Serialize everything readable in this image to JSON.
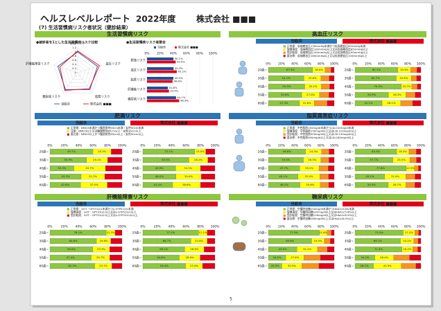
{
  "header": {
    "title": "ヘルスレベルレポート",
    "year": "2022年度",
    "company": "株式会社 ■■■",
    "subtitle": "(7) 生活習慣病リスク者状況（健診結果）"
  },
  "page_number": "5",
  "axis": {
    "xlim": [
      0,
      100
    ],
    "xticks": [
      {
        "value": 0,
        "label": "0%"
      },
      {
        "value": 20,
        "label": "20%"
      },
      {
        "value": 40,
        "label": "40%"
      },
      {
        "value": 60,
        "label": "60%"
      },
      {
        "value": 80,
        "label": "80%"
      },
      {
        "value": 100,
        "label": "100%"
      }
    ]
  },
  "age_groups": [
    "20歳~",
    "30歳~",
    "40歳~",
    "50歳~",
    "60歳~"
  ],
  "groups": [
    {
      "name": "当組合",
      "color": "#2e75b6"
    },
    {
      "name": "株式会社 ■■■",
      "color": "#e2001a"
    }
  ],
  "overview": {
    "title": "生活習慣病リスク",
    "radar": {
      "type": "radar",
      "title": "●被診者を1とした生活習慣病リスク比較",
      "axes": [
        "肥満リスク",
        "血圧リスク",
        "脂質リスク",
        "糖尿病リスク",
        "肝機能障害リスク"
      ],
      "rlim": [
        0,
        1.2
      ],
      "rticks": [
        0,
        0.2,
        0.4,
        0.6,
        0.8,
        1,
        1.2
      ],
      "series": [
        {
          "name": "当組合",
          "color": "#1f4e9c",
          "values": [
            1,
            1,
            1,
            1,
            1
          ]
        },
        {
          "name": "株式会社 ■■■",
          "color": "#e2001a",
          "values": [
            1.05,
            1.1,
            0.95,
            1.05,
            0.9
          ]
        }
      ]
    },
    "bars": {
      "type": "bar",
      "title": "●生活習慣病リスク者割合",
      "categories": [
        "肥満リスク",
        "血圧リスク",
        "脂質リスク",
        "肝機能リスク",
        "糖尿病リスク"
      ],
      "series": [
        {
          "name": "当組合",
          "color": "#1f4e9c",
          "values": [
            40.1,
            40.3,
            40.0,
            31.6,
            44.1
          ],
          "value_labels": [
            "40.1%",
            "40.3%",
            "40.0%",
            "31.6%",
            "44.1%"
          ]
        },
        {
          "name": "株式会社 ■■■",
          "color": "#e2001a",
          "values": [
            43.5,
            45.2,
            38.8,
            33.4,
            48.9
          ],
          "value_labels": [
            "43.5%",
            "45.2%",
            "38.8%",
            "33.4%",
            "48.9%"
          ]
        }
      ]
    }
  },
  "risks": [
    {
      "title": "高血圧リスク",
      "legend": [
        {
          "name": "正常値：収縮期血圧130mmHg未満かつ拡張期血圧85mmHg未満",
          "color": "#8dc63f"
        },
        {
          "name": "保健指導：収縮期血圧130mmHg以上又は拡張期血圧85mmHg以上",
          "color": "#ffff00"
        },
        {
          "name": "受診勧奨：収縮期血圧140mmHg以上又は拡張期血圧90mmHg以上",
          "color": "#f7941d"
        },
        {
          "name": "要治療：収縮期血圧160mmHg以上又は拡張期血圧100mmHg以上",
          "color": "#e2001a"
        }
      ],
      "charts": [
        {
          "series": [
            {
              "values": [
                67.3,
                54.1,
                55.3,
                50.8,
                47.3
              ],
              "value_labels": [
                "67.3%",
                "54.1%",
                "55.3%",
                "50.8%",
                "47.3%"
              ]
            },
            {
              "values": [
                18.9,
                25.8,
                25.2,
                27.0,
                22.6
              ],
              "value_labels": [
                "18.9%",
                "25.8%",
                "25.2%",
                "27.0%",
                "22.6%"
              ]
            },
            {
              "values": [
                8.8,
                12.4,
                12.6,
                14.2,
                19.4
              ]
            },
            {
              "values": [
                5.0,
                7.7,
                6.9,
                8.0,
                10.7
              ]
            }
          ]
        },
        {
          "series": [
            {
              "values": [
                65.1,
                62.7,
                70.3,
                50.9,
                41.1
              ],
              "value_labels": [
                "65.1%",
                "62.7%",
                "70.3%",
                "50.9%",
                "41.1%"
              ]
            },
            {
              "values": [
                19.3,
                22.8,
                15.7,
                26.3,
                28.1
              ],
              "value_labels": [
                "19.3%",
                "22.8%",
                "15.7%",
                "26.3%",
                "28.1%"
              ]
            },
            {
              "values": [
                9.6,
                8.1,
                8.5,
                14.0,
                18.2
              ]
            },
            {
              "values": [
                6.0,
                6.4,
                5.5,
                8.8,
                12.6
              ]
            }
          ]
        }
      ]
    },
    {
      "title": "肥満リスク",
      "legend": [
        {
          "name": "正常値：BMI25未満かつ腹囲男性85cm未満・女性90cm未満",
          "color": "#8dc63f"
        },
        {
          "name": "注意：BMI25以上又は腹囲男性85cm以上・女性90cm以上",
          "color": "#ffff00"
        },
        {
          "name": "要注意：BMI25以上かつ腹囲男性85cm以上・女性90cm以上",
          "color": "#e2001a"
        }
      ],
      "charts": [
        {
          "series": [
            {
              "values": [
                59.7,
                50.9,
                33.3,
                43.3,
                42.6
              ],
              "value_labels": [
                "59.7%",
                "50.9%",
                "33.3%",
                "43.3%",
                "42.6%"
              ]
            },
            {
              "values": [
                25.3,
                29.1,
                43.7,
                32.7,
                37.0
              ],
              "value_labels": [
                "25.3%",
                "29.1%",
                "43.7%",
                "32.7%",
                "37.0%"
              ]
            },
            {
              "values": [
                15.0,
                20.0,
                23.0,
                24.0,
                20.4
              ]
            }
          ]
        },
        {
          "series": [
            {
              "values": [
                72.1,
                63.9,
                45.6,
                46.0,
                41.4
              ],
              "value_labels": [
                "72.1%",
                "63.9%",
                "45.6%",
                "46.0%",
                "41.4%"
              ]
            },
            {
              "values": [
                15.0,
                26.2,
                34.3,
                35.0,
                38.6
              ],
              "value_labels": [
                "15.0%",
                "26.2%",
                "34.3%",
                "35.0%",
                "38.6%"
              ]
            },
            {
              "values": [
                12.9,
                9.9,
                20.1,
                19.0,
                20.0
              ]
            }
          ]
        }
      ]
    },
    {
      "title": "脂質異常症リスク",
      "legend": [
        {
          "name": "正常値：中性脂肪150mg/dl未満かつLDL120mg/dl未満",
          "color": "#8dc63f"
        },
        {
          "name": "保健指導：中性脂肪150mg/dl以上又はLDL120mg/dl以上",
          "color": "#ffff00"
        },
        {
          "name": "受診勧奨：中性脂肪300mg/dl以上又はLDL140mg/dl以上",
          "color": "#f7941d"
        },
        {
          "name": "要治療：中性脂肪500mg/dl以上又はLDL180mg/dl以上",
          "color": "#e2001a"
        }
      ],
      "charts": [
        {
          "series": [
            {
              "values": [
                56.6,
                53.4,
                47.7,
                45.1,
                48.2
              ],
              "value_labels": [
                "56.6%",
                "53.4%",
                "47.7%",
                "45.1%",
                "48.2%"
              ]
            },
            {
              "values": [
                24.3,
                26.5,
                29.2,
                32.9,
                30.6
              ],
              "value_labels": [
                "24.3%",
                "26.5%",
                "29.2%",
                "32.9%",
                "30.6%"
              ]
            },
            {
              "values": [
                11.2,
                12.1,
                14.0,
                13.3,
                12.8
              ]
            },
            {
              "values": [
                7.9,
                8.0,
                9.1,
                8.7,
                8.4
              ]
            }
          ]
        },
        {
          "series": [
            {
              "values": [
                63.3,
                57.7,
                77.8,
                45.1,
                50.5
              ],
              "value_labels": [
                "63.3%",
                "57.7%",
                "77.8%",
                "45.1%",
                "50.5%"
              ]
            },
            {
              "values": [
                18.4,
                25.5,
                12.5,
                31.9,
                26.7
              ],
              "value_labels": [
                "18.4%",
                "25.5%",
                "12.5%",
                "31.9%",
                "26.7%"
              ]
            },
            {
              "values": [
                11.3,
                10.0,
                5.9,
                14.1,
                13.6
              ]
            },
            {
              "values": [
                7.0,
                6.8,
                3.8,
                8.9,
                9.2
              ]
            }
          ]
        }
      ]
    },
    {
      "title": "肝機能障害リスク",
      "legend": [
        {
          "name": "正常値：GOT・GPT31U/L未満かつγ-GTP51U/L未満",
          "color": "#8dc63f"
        },
        {
          "name": "保健指導：GOT・GPT31U/L以上又はγ-GTP51U/L以上",
          "color": "#ffff00"
        },
        {
          "name": "受診勧奨：GOT・GPT51U/L以上又はγ-GTP101U/L以上",
          "color": "#e2001a"
        }
      ],
      "charts": [
        {
          "series": [
            {
              "values": [
                78.1,
                64.6,
                59.5,
                57.4,
                62.3
              ],
              "value_labels": [
                "78.1%",
                "64.6%",
                "59.5%",
                "57.4%",
                "62.3%"
              ]
            },
            {
              "values": [
                12.3,
                19.8,
                23.3,
                25.7,
                23.7
              ],
              "value_labels": [
                "12.3%",
                "19.8%",
                "23.3%",
                "25.7%",
                "23.7%"
              ]
            },
            {
              "values": [
                9.6,
                15.6,
                17.2,
                16.9,
                14.0
              ]
            }
          ]
        },
        {
          "series": [
            {
              "values": [
                77.2,
                66.7,
                58.1,
                50.6,
                59.4
              ],
              "value_labels": [
                "77.2%",
                "66.7%",
                "58.1%",
                "50.6%",
                "59.4%"
              ]
            },
            {
              "values": [
                12.1,
                22.6,
                26.9,
                28.9,
                23.4
              ],
              "value_labels": [
                "12.1%",
                "22.6%",
                "26.9%",
                "28.9%",
                "23.4%"
              ]
            },
            {
              "values": [
                10.7,
                10.7,
                15.0,
                20.5,
                17.2
              ]
            }
          ]
        }
      ]
    },
    {
      "title": "糖尿病リスク",
      "legend": [
        {
          "name": "正常値：空腹時血糖100mg/dl未満かつHbA1c5.6%未満",
          "color": "#8dc63f"
        },
        {
          "name": "保健指導：空腹時血糖100mg/dl以上又はHbA1c5.6%以上",
          "color": "#ffff00"
        },
        {
          "name": "受診勧奨：空腹時血糖126mg/dl以上又はHbA1c6.5%以上",
          "color": "#f7941d"
        },
        {
          "name": "要治療：空腹時血糖160mg/dl以上又はHbA1c8.0%以上",
          "color": "#e2001a"
        }
      ],
      "charts": [
        {
          "series": [
            {
              "values": [
                77.5,
                65.8,
                43.5,
                26.5,
                20.5
              ],
              "value_labels": [
                "77.5%",
                "65.8%",
                "43.5%",
                "26.5%",
                "20.5%"
              ]
            },
            {
              "values": [
                11.6,
                19.0,
                31.2,
                27.6,
                30.5
              ],
              "value_labels": [
                "11.6%",
                "19.0%",
                "31.2%",
                "27.6%",
                "30.5%"
              ]
            },
            {
              "values": [
                6.4,
                9.1,
                14.8,
                24.9,
                25.7
              ]
            },
            {
              "values": [
                4.5,
                6.1,
                10.5,
                21.0,
                23.3
              ]
            }
          ]
        },
        {
          "series": [
            {
              "values": [
                73.3,
                69.1,
                71.4,
                30.2,
                28.2
              ],
              "value_labels": [
                "73.3%",
                "69.1%",
                "71.4%",
                "30.2%",
                "28.2%"
              ]
            },
            {
              "values": [
                17.4,
                20.2,
                16.2,
                28.4,
                41.9
              ],
              "value_labels": [
                "17.4%",
                "20.2%",
                "16.2%",
                "28.4%",
                "41.9%"
              ]
            },
            {
              "values": [
                5.8,
                6.5,
                7.6,
                24.1,
                22.3
              ]
            },
            {
              "values": [
                3.5,
                4.2,
                4.8,
                17.3,
                7.6
              ]
            }
          ]
        }
      ]
    }
  ]
}
